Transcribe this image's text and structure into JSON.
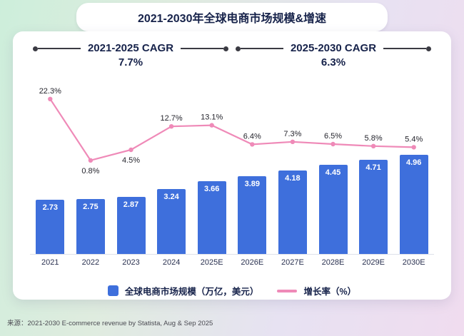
{
  "page": {
    "title": "2021-2030年全球电商市场规模&增速",
    "source": "来源：2021-2030 E-commerce revenue by Statista, Aug & Sep 2025"
  },
  "cagr": [
    {
      "label": "2021-2025 CAGR",
      "value": "7.7%"
    },
    {
      "label": "2025-2030 CAGR",
      "value": "6.3%"
    }
  ],
  "legend": [
    {
      "type": "bar",
      "label": "全球电商市场规模（万亿，美元）"
    },
    {
      "type": "line",
      "label": "增长率（%）"
    }
  ],
  "colors": {
    "bar": "#3e6fdc",
    "line": "#ef8ab8",
    "title_text": "#16224a",
    "cagr_line": "#3b3b43"
  },
  "chart_data": {
    "type": "combo",
    "title": "2021-2030年全球电商市场规模&增速",
    "categories": [
      "2021",
      "2022",
      "2023",
      "2024",
      "2025E",
      "2026E",
      "2027E",
      "2028E",
      "2029E",
      "2030E"
    ],
    "series": [
      {
        "name": "全球电商市场规模（万亿，美元）",
        "type": "bar",
        "values": [
          2.73,
          2.75,
          2.87,
          3.24,
          3.66,
          3.89,
          4.18,
          4.45,
          4.71,
          4.96
        ]
      },
      {
        "name": "增长率（%）",
        "type": "line",
        "values": [
          22.3,
          0.8,
          4.5,
          12.7,
          13.1,
          6.4,
          7.3,
          6.5,
          5.8,
          5.4
        ],
        "label_positions": [
          "above",
          "below",
          "below",
          "above",
          "above",
          "above",
          "above",
          "above",
          "above",
          "above"
        ]
      }
    ],
    "annotations": [
      {
        "label": "2021-2025 CAGR",
        "value": "7.7%"
      },
      {
        "label": "2025-2030 CAGR",
        "value": "6.3%"
      }
    ],
    "legend_position": "bottom",
    "grid": false,
    "ylim_bars": [
      0,
      5.5
    ],
    "ylim_line_pct": [
      0,
      25
    ]
  }
}
